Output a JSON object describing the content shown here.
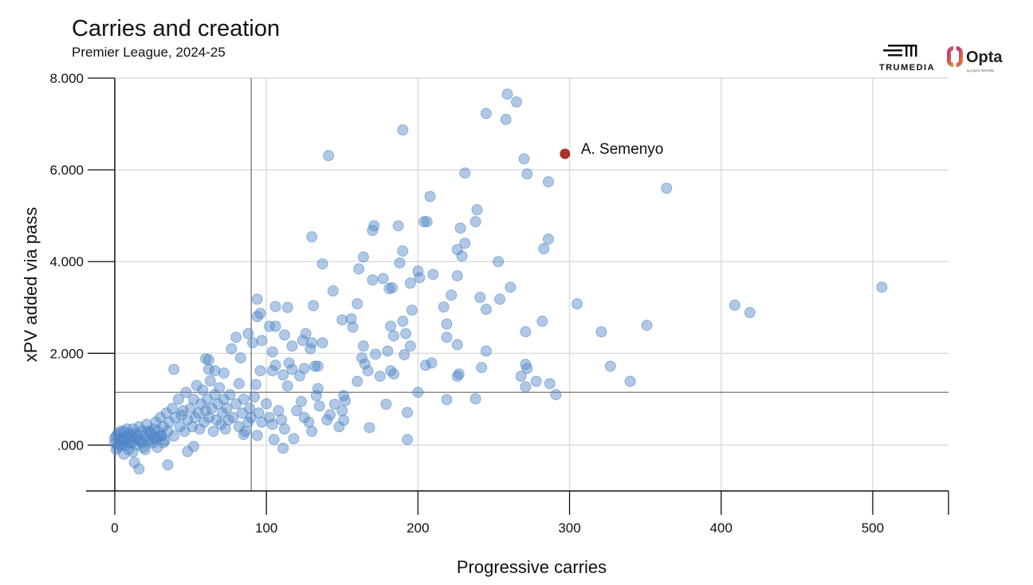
{
  "logos": {
    "trumedia": "TRUMEDIA",
    "opta": "Opta",
    "opta_sub": "by STATS PERFORM"
  },
  "colors": {
    "point": "#4f86c6",
    "highlight": "#a8302a",
    "reference_line": "#777777",
    "grid": "#dddddd"
  },
  "chart_data": {
    "type": "scatter",
    "title": "Carries and creation",
    "subtitle": "Premier League, 2024-25",
    "xlabel": "Progressive carries",
    "ylabel": "xPV added via pass",
    "xlim": [
      0,
      550
    ],
    "ylim": [
      -1,
      8
    ],
    "xticks": [
      0,
      100,
      200,
      300,
      400,
      500
    ],
    "xtick_labels": [
      "0",
      "100",
      "200",
      "300",
      "400",
      "500"
    ],
    "yticks": [
      0,
      2,
      4,
      6,
      8
    ],
    "ytick_labels": [
      ".000",
      "2.000",
      "4.000",
      "6.000",
      "8.000"
    ],
    "grid": true,
    "reference_lines": {
      "x": 90,
      "y": 1.15
    },
    "highlight": {
      "label": "A. Semenyo",
      "x": 297,
      "y": 6.35
    },
    "points": [
      [
        259,
        7.65
      ],
      [
        265,
        7.48
      ],
      [
        245,
        7.23
      ],
      [
        258,
        7.1
      ],
      [
        190,
        6.87
      ],
      [
        141,
        6.31
      ],
      [
        270,
        6.24
      ],
      [
        231,
        5.93
      ],
      [
        272,
        5.91
      ],
      [
        286,
        5.74
      ],
      [
        364,
        5.6
      ],
      [
        208,
        5.42
      ],
      [
        239,
        5.13
      ],
      [
        204,
        4.87
      ],
      [
        206,
        4.87
      ],
      [
        238,
        4.87
      ],
      [
        171,
        4.78
      ],
      [
        170,
        4.68
      ],
      [
        187,
        4.78
      ],
      [
        228,
        4.73
      ],
      [
        130,
        4.54
      ],
      [
        286,
        4.49
      ],
      [
        231,
        4.4
      ],
      [
        190,
        4.23
      ],
      [
        226,
        4.26
      ],
      [
        283,
        4.28
      ],
      [
        229,
        4.12
      ],
      [
        164,
        4.1
      ],
      [
        253,
        4.0
      ],
      [
        137,
        3.95
      ],
      [
        188,
        3.97
      ],
      [
        161,
        3.84
      ],
      [
        200,
        3.79
      ],
      [
        210,
        3.72
      ],
      [
        201,
        3.65
      ],
      [
        226,
        3.69
      ],
      [
        177,
        3.63
      ],
      [
        170,
        3.6
      ],
      [
        195,
        3.53
      ],
      [
        181,
        3.41
      ],
      [
        183,
        3.43
      ],
      [
        261,
        3.44
      ],
      [
        506,
        3.44
      ],
      [
        144,
        3.36
      ],
      [
        222,
        3.27
      ],
      [
        94,
        3.18
      ],
      [
        241,
        3.22
      ],
      [
        254,
        3.18
      ],
      [
        160,
        3.08
      ],
      [
        305,
        3.08
      ],
      [
        409,
        3.05
      ],
      [
        106,
        3.02
      ],
      [
        114,
        3.0
      ],
      [
        131,
        3.04
      ],
      [
        196,
        2.94
      ],
      [
        217,
        3.01
      ],
      [
        245,
        2.96
      ],
      [
        419,
        2.89
      ],
      [
        96,
        2.87
      ],
      [
        94,
        2.8
      ],
      [
        150,
        2.73
      ],
      [
        156,
        2.75
      ],
      [
        190,
        2.7
      ],
      [
        282,
        2.7
      ],
      [
        102,
        2.59
      ],
      [
        106,
        2.59
      ],
      [
        157,
        2.57
      ],
      [
        182,
        2.59
      ],
      [
        219,
        2.64
      ],
      [
        351,
        2.61
      ],
      [
        321,
        2.47
      ],
      [
        271,
        2.47
      ],
      [
        80,
        2.35
      ],
      [
        88,
        2.43
      ],
      [
        126,
        2.43
      ],
      [
        192,
        2.43
      ],
      [
        184,
        2.38
      ],
      [
        219,
        2.35
      ],
      [
        112,
        2.4
      ],
      [
        97,
        2.28
      ],
      [
        91,
        2.23
      ],
      [
        124,
        2.28
      ],
      [
        130,
        2.23
      ],
      [
        137,
        2.23
      ],
      [
        117,
        2.16
      ],
      [
        164,
        2.16
      ],
      [
        195,
        2.16
      ],
      [
        226,
        2.19
      ],
      [
        77,
        2.1
      ],
      [
        129,
        2.1
      ],
      [
        180,
        2.05
      ],
      [
        245,
        2.05
      ],
      [
        104,
        2.03
      ],
      [
        172,
        1.98
      ],
      [
        191,
        1.97
      ],
      [
        163,
        1.9
      ],
      [
        60,
        1.88
      ],
      [
        62,
        1.86
      ],
      [
        83,
        1.9
      ],
      [
        209,
        1.79
      ],
      [
        205,
        1.74
      ],
      [
        165,
        1.77
      ],
      [
        271,
        1.76
      ],
      [
        272,
        1.67
      ],
      [
        242,
        1.69
      ],
      [
        327,
        1.72
      ],
      [
        106,
        1.74
      ],
      [
        115,
        1.79
      ],
      [
        132,
        1.72
      ],
      [
        134,
        1.72
      ],
      [
        39,
        1.65
      ],
      [
        104,
        1.62
      ],
      [
        117,
        1.65
      ],
      [
        125,
        1.67
      ],
      [
        167,
        1.62
      ],
      [
        182,
        1.62
      ],
      [
        96,
        1.62
      ],
      [
        62,
        1.65
      ],
      [
        66,
        1.62
      ],
      [
        72,
        1.57
      ],
      [
        227,
        1.55
      ],
      [
        175,
        1.5
      ],
      [
        184,
        1.55
      ],
      [
        226,
        1.5
      ],
      [
        111,
        1.53
      ],
      [
        122,
        1.51
      ],
      [
        268,
        1.5
      ],
      [
        160,
        1.39
      ],
      [
        278,
        1.39
      ],
      [
        287,
        1.34
      ],
      [
        340,
        1.39
      ],
      [
        82,
        1.34
      ],
      [
        114,
        1.29
      ],
      [
        271,
        1.27
      ],
      [
        134,
        1.23
      ],
      [
        93,
        1.32
      ],
      [
        200,
        1.15
      ],
      [
        291,
        1.1
      ],
      [
        151,
        1.08
      ],
      [
        133,
        1.08
      ],
      [
        219,
        0.99
      ],
      [
        238,
        1.01
      ],
      [
        152,
        0.97
      ],
      [
        179,
        0.89
      ],
      [
        145,
        0.89
      ],
      [
        142,
        0.66
      ],
      [
        193,
        0.71
      ],
      [
        150,
        0.75
      ],
      [
        168,
        0.38
      ],
      [
        193,
        0.12
      ],
      [
        111,
        -0.07
      ],
      [
        118,
        0.14
      ],
      [
        105,
        0.12
      ],
      [
        94,
        0.21
      ],
      [
        85,
        0.23
      ],
      [
        151,
        0.54
      ],
      [
        35,
        -0.43
      ],
      [
        16,
        -0.52
      ],
      [
        13,
        -0.38
      ],
      [
        48,
        -0.14
      ],
      [
        52,
        -0.03
      ],
      [
        0,
        0.05
      ],
      [
        1,
        0.2
      ],
      [
        2,
        -0.05
      ],
      [
        3,
        0.1
      ],
      [
        4,
        0.15
      ],
      [
        5,
        0.0
      ],
      [
        6,
        0.3
      ],
      [
        7,
        0.1
      ],
      [
        8,
        0.2
      ],
      [
        9,
        -0.1
      ],
      [
        10,
        0.25
      ],
      [
        11,
        0.05
      ],
      [
        12,
        0.35
      ],
      [
        13,
        0.15
      ],
      [
        14,
        0.0
      ],
      [
        15,
        0.2
      ],
      [
        16,
        0.4
      ],
      [
        17,
        0.1
      ],
      [
        18,
        0.3
      ],
      [
        19,
        -0.05
      ],
      [
        20,
        0.2
      ],
      [
        21,
        0.45
      ],
      [
        22,
        0.1
      ],
      [
        23,
        0.3
      ],
      [
        24,
        0.25
      ],
      [
        25,
        0.05
      ],
      [
        26,
        0.35
      ],
      [
        27,
        0.5
      ],
      [
        28,
        0.15
      ],
      [
        29,
        0.3
      ],
      [
        30,
        0.6
      ],
      [
        31,
        0.2
      ],
      [
        32,
        0.4
      ],
      [
        33,
        0.1
      ],
      [
        34,
        0.7
      ],
      [
        35,
        0.3
      ],
      [
        36,
        0.5
      ],
      [
        38,
        0.8
      ],
      [
        39,
        0.2
      ],
      [
        40,
        0.6
      ],
      [
        42,
        1.0
      ],
      [
        43,
        0.4
      ],
      [
        44,
        0.65
      ],
      [
        45,
        0.75
      ],
      [
        46,
        0.3
      ],
      [
        47,
        1.15
      ],
      [
        48,
        0.55
      ],
      [
        50,
        0.8
      ],
      [
        51,
        0.4
      ],
      [
        52,
        1.0
      ],
      [
        53,
        0.6
      ],
      [
        54,
        1.3
      ],
      [
        55,
        0.7
      ],
      [
        56,
        0.35
      ],
      [
        57,
        0.9
      ],
      [
        58,
        1.2
      ],
      [
        59,
        0.5
      ],
      [
        60,
        0.75
      ],
      [
        61,
        1.0
      ],
      [
        62,
        0.6
      ],
      [
        63,
        1.4
      ],
      [
        64,
        0.8
      ],
      [
        65,
        0.3
      ],
      [
        66,
        1.1
      ],
      [
        67,
        0.55
      ],
      [
        68,
        0.9
      ],
      [
        69,
        1.25
      ],
      [
        70,
        0.45
      ],
      [
        71,
        0.7
      ],
      [
        72,
        1.0
      ],
      [
        73,
        0.35
      ],
      [
        74,
        0.8
      ],
      [
        75,
        0.55
      ],
      [
        76,
        1.1
      ],
      [
        78,
        0.6
      ],
      [
        80,
        0.9
      ],
      [
        82,
        0.4
      ],
      [
        84,
        0.7
      ],
      [
        85,
        1.0
      ],
      [
        86,
        0.3
      ],
      [
        88,
        0.5
      ],
      [
        89,
        0.8
      ],
      [
        90,
        0.6
      ],
      [
        92,
        1.05
      ],
      [
        95,
        0.7
      ],
      [
        97,
        0.5
      ],
      [
        100,
        0.9
      ],
      [
        102,
        0.6
      ],
      [
        104,
        0.45
      ],
      [
        108,
        0.75
      ],
      [
        110,
        0.55
      ],
      [
        112,
        0.35
      ],
      [
        120,
        0.75
      ],
      [
        123,
        0.95
      ],
      [
        125,
        0.6
      ],
      [
        128,
        0.5
      ],
      [
        130,
        0.3
      ],
      [
        135,
        0.85
      ],
      [
        140,
        0.55
      ],
      [
        148,
        0.4
      ],
      [
        0,
        0.15
      ],
      [
        1,
        -0.1
      ],
      [
        2,
        0.25
      ],
      [
        3,
        0.0
      ],
      [
        4,
        0.3
      ],
      [
        5,
        0.1
      ],
      [
        6,
        -0.2
      ],
      [
        7,
        0.0
      ],
      [
        8,
        0.35
      ],
      [
        9,
        0.15
      ],
      [
        10,
        0.05
      ],
      [
        11,
        0.2
      ],
      [
        12,
        -0.15
      ],
      [
        14,
        0.25
      ],
      [
        16,
        0.1
      ],
      [
        18,
        0.05
      ],
      [
        20,
        -0.1
      ],
      [
        22,
        0.3
      ],
      [
        24,
        0.1
      ],
      [
        26,
        0.15
      ],
      [
        28,
        -0.05
      ],
      [
        30,
        0.2
      ],
      [
        32,
        0.05
      ]
    ]
  }
}
